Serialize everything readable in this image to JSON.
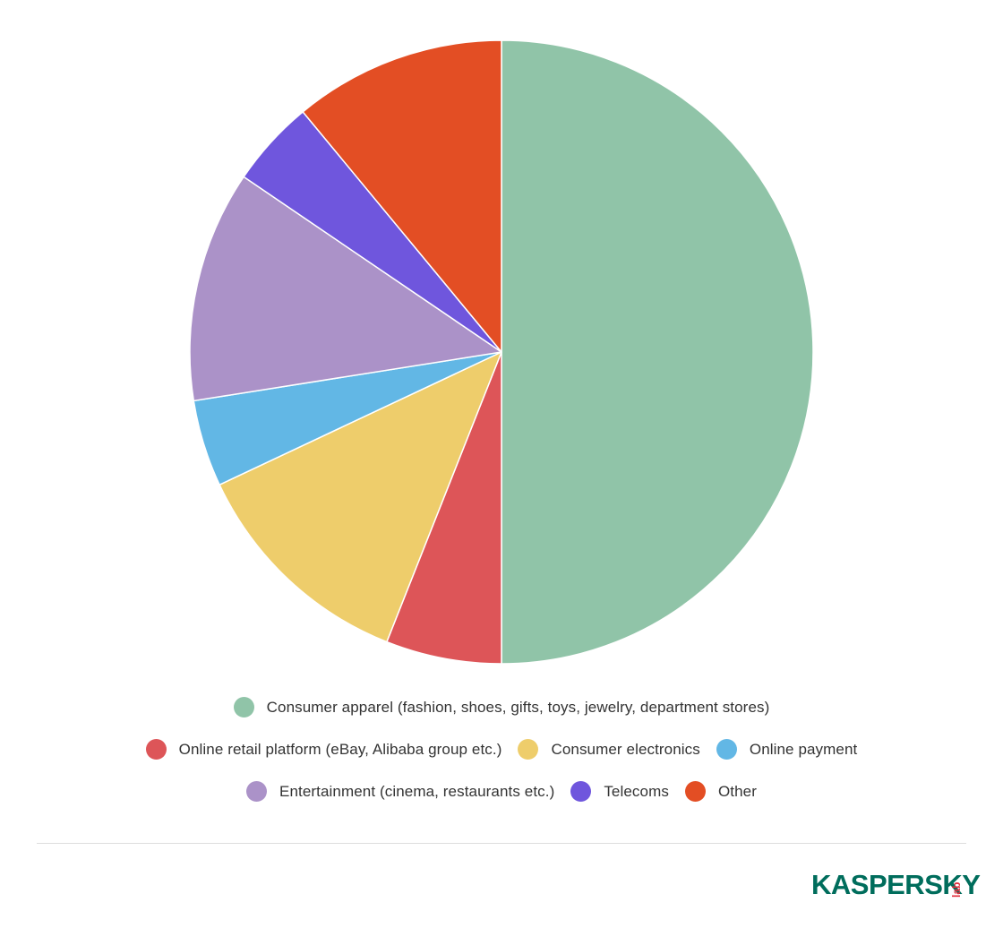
{
  "chart_data": {
    "type": "pie",
    "start_angle": "12 o'clock",
    "direction": "clockwise",
    "slice_border": "#ffffff",
    "series": [
      {
        "name": "Consumer apparel (fashion, shoes, gifts, toys, jewelry, department stores)",
        "value": 50,
        "color": "#90c4a8"
      },
      {
        "name": "Online retail platform (eBay, Alibaba group etc.)",
        "value": 6,
        "color": "#dd5558"
      },
      {
        "name": "Consumer electronics",
        "value": 12,
        "color": "#eecd6b"
      },
      {
        "name": "Online payment",
        "value": 4.5,
        "color": "#62b7e5"
      },
      {
        "name": "Entertainment (cinema, restaurants etc.)",
        "value": 12,
        "color": "#ab92c8"
      },
      {
        "name": "Telecoms",
        "value": 4.5,
        "color": "#6f56dd"
      },
      {
        "name": "Other",
        "value": 11,
        "color": "#e34e24"
      }
    ],
    "legend_position": "bottom"
  },
  "legend": {
    "row1": [
      {
        "label": "Consumer apparel (fashion, shoes, gifts, toys, jewelry, department stores)",
        "color": "#90c4a8"
      }
    ],
    "row2": [
      {
        "label": "Online retail platform (eBay, Alibaba group etc.)",
        "color": "#dd5558"
      },
      {
        "label": "Consumer electronics",
        "color": "#eecd6b"
      },
      {
        "label": "Online payment",
        "color": "#62b7e5"
      }
    ],
    "row3": [
      {
        "label": "Entertainment (cinema, restaurants etc.)",
        "color": "#ab92c8"
      },
      {
        "label": "Telecoms",
        "color": "#6f56dd"
      },
      {
        "label": "Other",
        "color": "#e34e24"
      }
    ]
  },
  "logo": {
    "text": "KASPERSKY",
    "suffix": "lab",
    "color": "#006d5c",
    "accent_color": "#e32d3c"
  }
}
